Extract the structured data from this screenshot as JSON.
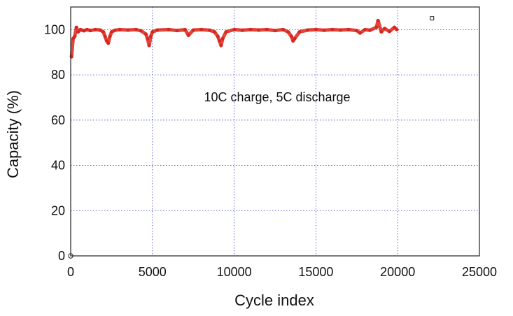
{
  "chart_data": {
    "type": "scatter",
    "title": "",
    "xlabel": "Cycle index",
    "ylabel": "Capacity (%)",
    "xlim": [
      0,
      25000
    ],
    "ylim": [
      0,
      110
    ],
    "x_ticks": [
      0,
      5000,
      10000,
      15000,
      20000,
      25000
    ],
    "x_tick_labels": [
      "0",
      "5000",
      "10000",
      "15000",
      "20000",
      "25000"
    ],
    "y_ticks": [
      0,
      20,
      40,
      60,
      80,
      100
    ],
    "y_tick_labels": [
      "0",
      "20",
      "40",
      "60",
      "80",
      "100"
    ],
    "grid": true,
    "grid_style": "dotted",
    "annotation": "10C charge, 5C discharge",
    "series": [
      {
        "color": "#d9261c",
        "marker": "dot",
        "points": [
          [
            50,
            88
          ],
          [
            150,
            96
          ],
          [
            250,
            97
          ],
          [
            350,
            101
          ],
          [
            450,
            99
          ],
          [
            600,
            100
          ],
          [
            800,
            99.5
          ],
          [
            1000,
            100
          ],
          [
            1200,
            99.6
          ],
          [
            1500,
            100
          ],
          [
            1800,
            99.8
          ],
          [
            2000,
            99
          ],
          [
            2100,
            97
          ],
          [
            2200,
            95
          ],
          [
            2300,
            94
          ],
          [
            2400,
            97
          ],
          [
            2500,
            99
          ],
          [
            2700,
            99.7
          ],
          [
            3000,
            100
          ],
          [
            3500,
            99.8
          ],
          [
            4000,
            100
          ],
          [
            4300,
            99.5
          ],
          [
            4600,
            98
          ],
          [
            4700,
            96
          ],
          [
            4800,
            93
          ],
          [
            4900,
            97
          ],
          [
            5000,
            99
          ],
          [
            5300,
            99.8
          ],
          [
            6000,
            100
          ],
          [
            6500,
            99.6
          ],
          [
            7000,
            100
          ],
          [
            7200,
            97.5
          ],
          [
            7500,
            99.8
          ],
          [
            8000,
            100
          ],
          [
            8500,
            99.7
          ],
          [
            8800,
            99
          ],
          [
            9000,
            97
          ],
          [
            9100,
            95
          ],
          [
            9200,
            93
          ],
          [
            9300,
            96
          ],
          [
            9500,
            99
          ],
          [
            10000,
            100
          ],
          [
            10500,
            99.7
          ],
          [
            11000,
            100
          ],
          [
            11500,
            99.8
          ],
          [
            12000,
            100
          ],
          [
            12500,
            99.6
          ],
          [
            13000,
            100
          ],
          [
            13300,
            99
          ],
          [
            13500,
            97
          ],
          [
            13600,
            95
          ],
          [
            13700,
            96
          ],
          [
            14000,
            99
          ],
          [
            14500,
            99.8
          ],
          [
            15000,
            100
          ],
          [
            15500,
            99.7
          ],
          [
            16000,
            100
          ],
          [
            16500,
            99.8
          ],
          [
            17000,
            100
          ],
          [
            17500,
            99.6
          ],
          [
            17700,
            98.5
          ],
          [
            18000,
            100
          ],
          [
            18300,
            99.7
          ],
          [
            18700,
            101
          ],
          [
            18800,
            104
          ],
          [
            19000,
            99
          ],
          [
            19200,
            100.5
          ],
          [
            19500,
            99.2
          ],
          [
            19800,
            101
          ],
          [
            19950,
            100
          ]
        ]
      }
    ],
    "legend_marker": {
      "x": 22100,
      "y": 105
    },
    "origin_marker": {
      "x": 0,
      "y": 0
    }
  }
}
